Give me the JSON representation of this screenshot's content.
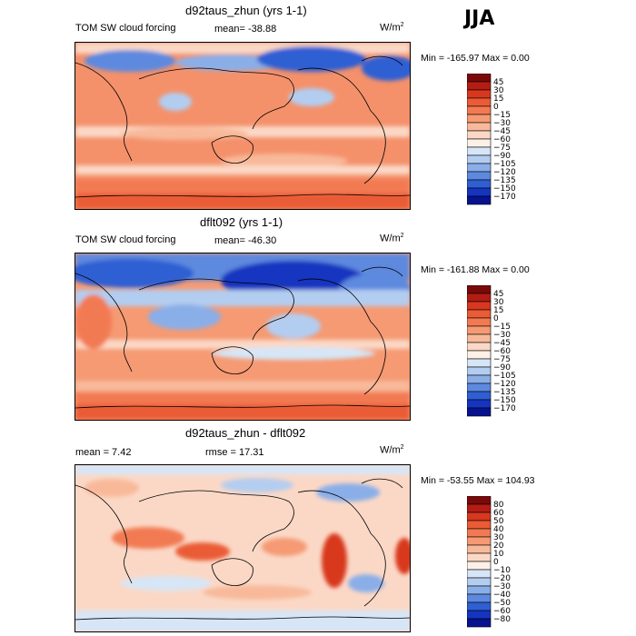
{
  "season": "JJA",
  "panels": [
    {
      "title": "d92taus_zhun (yrs 1-1)",
      "variable": "TOM SW cloud forcing",
      "stat_text": "mean=  -38.88",
      "units": "W/m",
      "units_exp": "2",
      "minmax": "Min = -165.97 Max =    0.00",
      "colorbar": {
        "labels": [
          "45",
          "30",
          "15",
          "0",
          "−15",
          "−30",
          "−45",
          "−60",
          "−75",
          "−90",
          "−105",
          "−120",
          "−135",
          "−150",
          "−170"
        ],
        "colors": [
          "#7a0a0a",
          "#b51c14",
          "#d8381f",
          "#ea5b36",
          "#f27a52",
          "#f59a73",
          "#f8b99a",
          "#fbd8c6",
          "#fdf0e6",
          "#d6e6f7",
          "#b3cdf0",
          "#8aaee8",
          "#5d89df",
          "#2f5fd3",
          "#1535c0",
          "#06128f"
        ]
      },
      "chart_data": {
        "type": "heatmap",
        "title": "d92taus_zhun (yrs 1-1)",
        "subtitle": "TOM SW cloud forcing",
        "mean": -38.88,
        "min": -165.97,
        "max": 0.0,
        "units": "W/m2",
        "levels": [
          45,
          30,
          15,
          0,
          -15,
          -30,
          -45,
          -60,
          -75,
          -90,
          -105,
          -120,
          -135,
          -150,
          -170
        ]
      }
    },
    {
      "title": "dflt092 (yrs 1-1)",
      "variable": "TOM SW cloud forcing",
      "stat_text": "mean=  -46.30",
      "units": "W/m",
      "units_exp": "2",
      "minmax": "Min = -161.88 Max =    0.00",
      "colorbar": {
        "labels": [
          "45",
          "30",
          "15",
          "0",
          "−15",
          "−30",
          "−45",
          "−60",
          "−75",
          "−90",
          "−105",
          "−120",
          "−135",
          "−150",
          "−170"
        ],
        "colors": [
          "#7a0a0a",
          "#b51c14",
          "#d8381f",
          "#ea5b36",
          "#f27a52",
          "#f59a73",
          "#f8b99a",
          "#fbd8c6",
          "#fdf0e6",
          "#d6e6f7",
          "#b3cdf0",
          "#8aaee8",
          "#5d89df",
          "#2f5fd3",
          "#1535c0",
          "#06128f"
        ]
      },
      "chart_data": {
        "type": "heatmap",
        "title": "dflt092 (yrs 1-1)",
        "subtitle": "TOM SW cloud forcing",
        "mean": -46.3,
        "min": -161.88,
        "max": 0.0,
        "units": "W/m2",
        "levels": [
          45,
          30,
          15,
          0,
          -15,
          -30,
          -45,
          -60,
          -75,
          -90,
          -105,
          -120,
          -135,
          -150,
          -170
        ]
      }
    },
    {
      "title": "d92taus_zhun - dflt092",
      "mean_text": "mean =    7.42",
      "rmse_text": "rmse =   17.31",
      "units": "W/m",
      "units_exp": "2",
      "minmax": "Min = -53.55 Max = 104.93",
      "colorbar": {
        "labels": [
          "80",
          "60",
          "50",
          "40",
          "30",
          "20",
          "10",
          "0",
          "−10",
          "−20",
          "−30",
          "−40",
          "−50",
          "−60",
          "−80"
        ],
        "colors": [
          "#7a0a0a",
          "#b51c14",
          "#d8381f",
          "#ea5b36",
          "#f27a52",
          "#f59a73",
          "#f8b99a",
          "#fbd8c6",
          "#fdf0e6",
          "#d6e6f7",
          "#b3cdf0",
          "#8aaee8",
          "#5d89df",
          "#2f5fd3",
          "#1535c0",
          "#06128f"
        ]
      },
      "chart_data": {
        "type": "heatmap",
        "title": "d92taus_zhun - dflt092",
        "mean": 7.42,
        "rmse": 17.31,
        "min": -53.55,
        "max": 104.93,
        "units": "W/m2",
        "levels": [
          80,
          60,
          50,
          40,
          30,
          20,
          10,
          0,
          -10,
          -20,
          -30,
          -40,
          -50,
          -60,
          -80
        ]
      }
    }
  ]
}
